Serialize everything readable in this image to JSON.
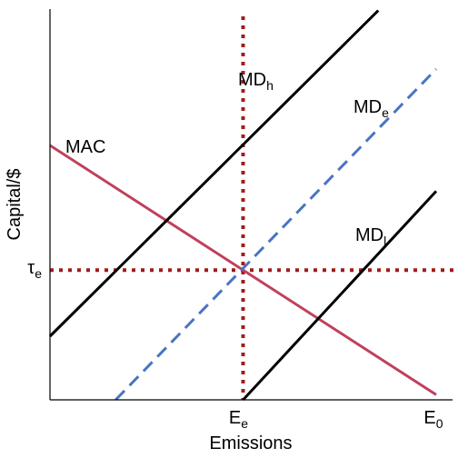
{
  "chart_data": {
    "type": "line",
    "title": "",
    "xlabel": "Emissions",
    "ylabel": "Capital/$",
    "xlim": [
      0,
      100
    ],
    "ylim": [
      0,
      100
    ],
    "grid": false,
    "series": [
      {
        "name": "MAC",
        "color": "#c0405c",
        "dash": "solid",
        "label_base": "MAC",
        "label_sub": "",
        "x": [
          0,
          100
        ],
        "y": [
          100,
          2
        ]
      },
      {
        "name": "MD_h",
        "color": "#000000",
        "dash": "solid",
        "label_base": "MD",
        "label_sub": "h",
        "x": [
          0,
          85
        ],
        "y": [
          25,
          153
        ]
      },
      {
        "name": "MD_e",
        "color": "#4a74c4",
        "dash": "dashed",
        "label_base": "MD",
        "label_sub": "e",
        "x": [
          17,
          100
        ],
        "y": [
          0,
          130
        ]
      },
      {
        "name": "MD_l",
        "color": "#000000",
        "dash": "solid",
        "label_base": "MD",
        "label_sub": "l",
        "x": [
          50,
          100
        ],
        "y": [
          0,
          82
        ]
      }
    ],
    "reference_lines": [
      {
        "orientation": "vertical",
        "x": 50,
        "color": "#a01c1c",
        "dash": "dotted",
        "tick_base": "E",
        "tick_sub": "e"
      },
      {
        "orientation": "horizontal",
        "y": 51,
        "color": "#a01c1c",
        "dash": "dotted",
        "tick_base": "τ",
        "tick_sub": "e"
      }
    ],
    "x_end_tick": {
      "x": 100,
      "base": "E",
      "sub": "0"
    }
  }
}
